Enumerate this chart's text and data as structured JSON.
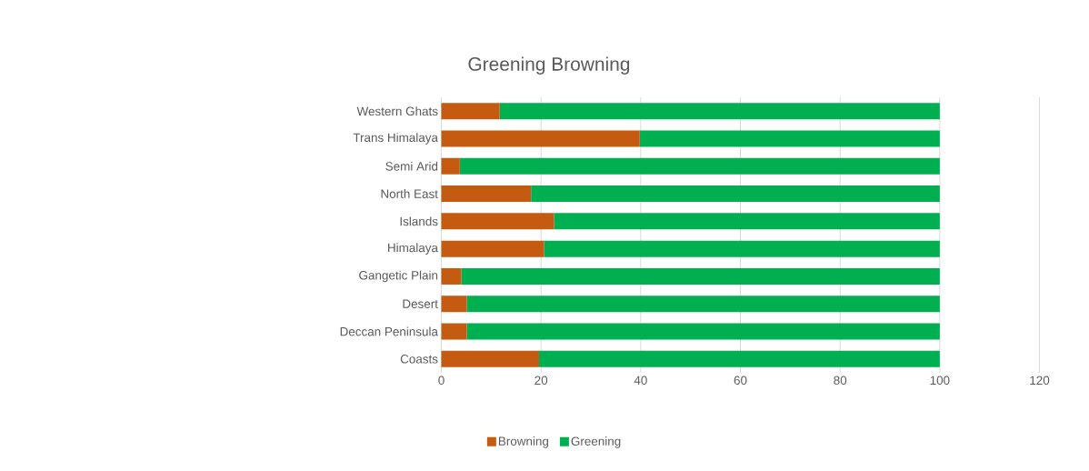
{
  "chart_data": {
    "type": "bar",
    "orientation": "horizontal",
    "stacked": true,
    "title": "Greening Browning",
    "categories": [
      "Western Ghats",
      "Trans Himalaya",
      "Semi Arid",
      "North East",
      "Islands",
      "Himalaya",
      "Gangetic Plain",
      "Desert",
      "Deccan Peninsula",
      "Coasts"
    ],
    "series": [
      {
        "name": "Browning",
        "color": "#c55a11",
        "values": [
          11.7,
          39.8,
          3.7,
          18.0,
          22.6,
          20.6,
          4.0,
          5.1,
          5.1,
          19.6
        ]
      },
      {
        "name": "Greening",
        "color": "#00b050",
        "values": [
          88.3,
          60.2,
          96.3,
          82.0,
          77.4,
          79.4,
          96.0,
          94.9,
          94.9,
          80.4
        ]
      }
    ],
    "xlim": [
      0,
      120
    ],
    "xticks": [
      0,
      20,
      40,
      60,
      80,
      100,
      120
    ],
    "grid": "x",
    "legend": "bottom"
  }
}
